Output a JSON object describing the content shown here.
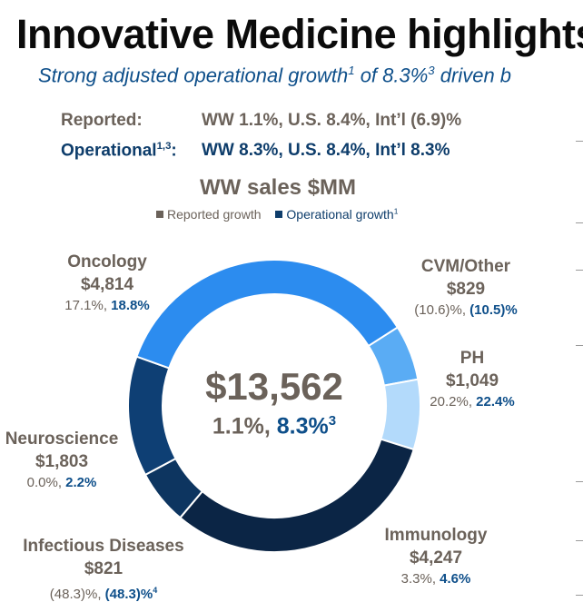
{
  "header": {
    "title": "Innovative Medicine highlights",
    "subtitle_pre": "Strong adjusted operational growth",
    "subtitle_sup": "1",
    "subtitle_mid": " of 8.3%",
    "subtitle_sup2": "3",
    "subtitle_post": " driven b"
  },
  "summary": {
    "reported_label": "Reported:",
    "reported_value": "WW 1.1%, U.S. 8.4%, Int’l (6.9)%",
    "operational_label": "Operational",
    "operational_sup": "1,3",
    "operational_colon": ":",
    "operational_value": "WW 8.3%, U.S. 8.4%, Int’l 8.3%"
  },
  "chart_data": {
    "type": "pie",
    "title": "WW sales $MM",
    "legend": {
      "reported": "Reported growth",
      "operational": "Operational growth",
      "operational_sup": "1"
    },
    "total": {
      "value": "$13,562",
      "reported": "1.1%, ",
      "operational": "8.3%",
      "operational_sup": "3"
    },
    "segments": [
      {
        "name": "CVM/Other",
        "value": 829,
        "value_label": "$829",
        "reported": "(10.6)%, ",
        "operational": "(10.5)%",
        "sup": "",
        "color": "#5aacf4"
      },
      {
        "name": "PH",
        "value": 1049,
        "value_label": "$1,049",
        "reported": "20.2%, ",
        "operational": "22.4%",
        "sup": "",
        "color": "#b3dafb"
      },
      {
        "name": "Immunology",
        "value": 4247,
        "value_label": "$4,247",
        "reported": "3.3%, ",
        "operational": "4.6%",
        "sup": "",
        "color": "#0b2545"
      },
      {
        "name": "Infectious Diseases",
        "value": 821,
        "value_label": "$821",
        "reported": "(48.3)%, ",
        "operational": "(48.3)%",
        "sup": "4",
        "color": "#0d3560"
      },
      {
        "name": "Neuroscience",
        "value": 1803,
        "value_label": "$1,803",
        "reported": "0.0%, ",
        "operational": "2.2%",
        "sup": "",
        "color": "#0e3f74"
      },
      {
        "name": "Oncology",
        "value": 4814,
        "value_label": "$4,814",
        "reported": "17.1%, ",
        "operational": "18.8%",
        "sup": "",
        "color": "#2c8cef"
      }
    ],
    "colors": {
      "reported": "#6b625a",
      "operational": "#0e4f8a"
    }
  }
}
